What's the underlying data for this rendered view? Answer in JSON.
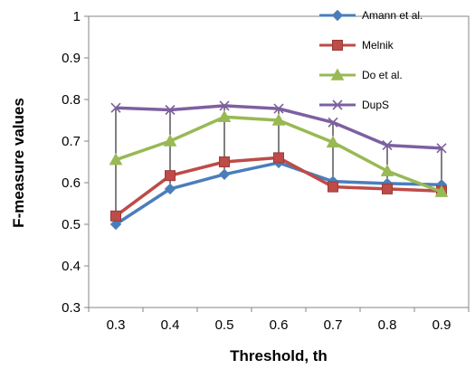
{
  "chart_data": {
    "type": "line",
    "title": "",
    "xlabel": "Threshold, th",
    "ylabel": "F-measure values",
    "x": [
      0.3,
      0.4,
      0.5,
      0.6,
      0.7,
      0.8,
      0.9
    ],
    "x_tick_labels": [
      "0.3",
      "0.4",
      "0.5",
      "0.6",
      "0.7",
      "0.8",
      "0.9"
    ],
    "y_tick_labels": [
      "0.3",
      "0.4",
      "0.5",
      "0.6",
      "0.7",
      "0.8",
      "0.9",
      "1"
    ],
    "ylim": [
      0.3,
      1
    ],
    "grid": false,
    "drop_lines": true,
    "legend_position": "top-right",
    "series": [
      {
        "name": "Amann et al.",
        "color": "#4a7ebb",
        "marker": "diamond",
        "values": [
          0.5,
          0.585,
          0.62,
          0.648,
          0.603,
          0.598,
          0.595
        ]
      },
      {
        "name": "Melnik",
        "color": "#be4b48",
        "marker": "square",
        "values": [
          0.52,
          0.617,
          0.65,
          0.66,
          0.59,
          0.585,
          0.58
        ]
      },
      {
        "name": "Do et al.",
        "color": "#98b954",
        "marker": "triangle",
        "values": [
          0.655,
          0.7,
          0.758,
          0.75,
          0.697,
          0.628,
          0.578
        ]
      },
      {
        "name": "DupS",
        "color": "#7d60a0",
        "marker": "x",
        "values": [
          0.78,
          0.775,
          0.785,
          0.778,
          0.745,
          0.69,
          0.683
        ]
      }
    ]
  }
}
